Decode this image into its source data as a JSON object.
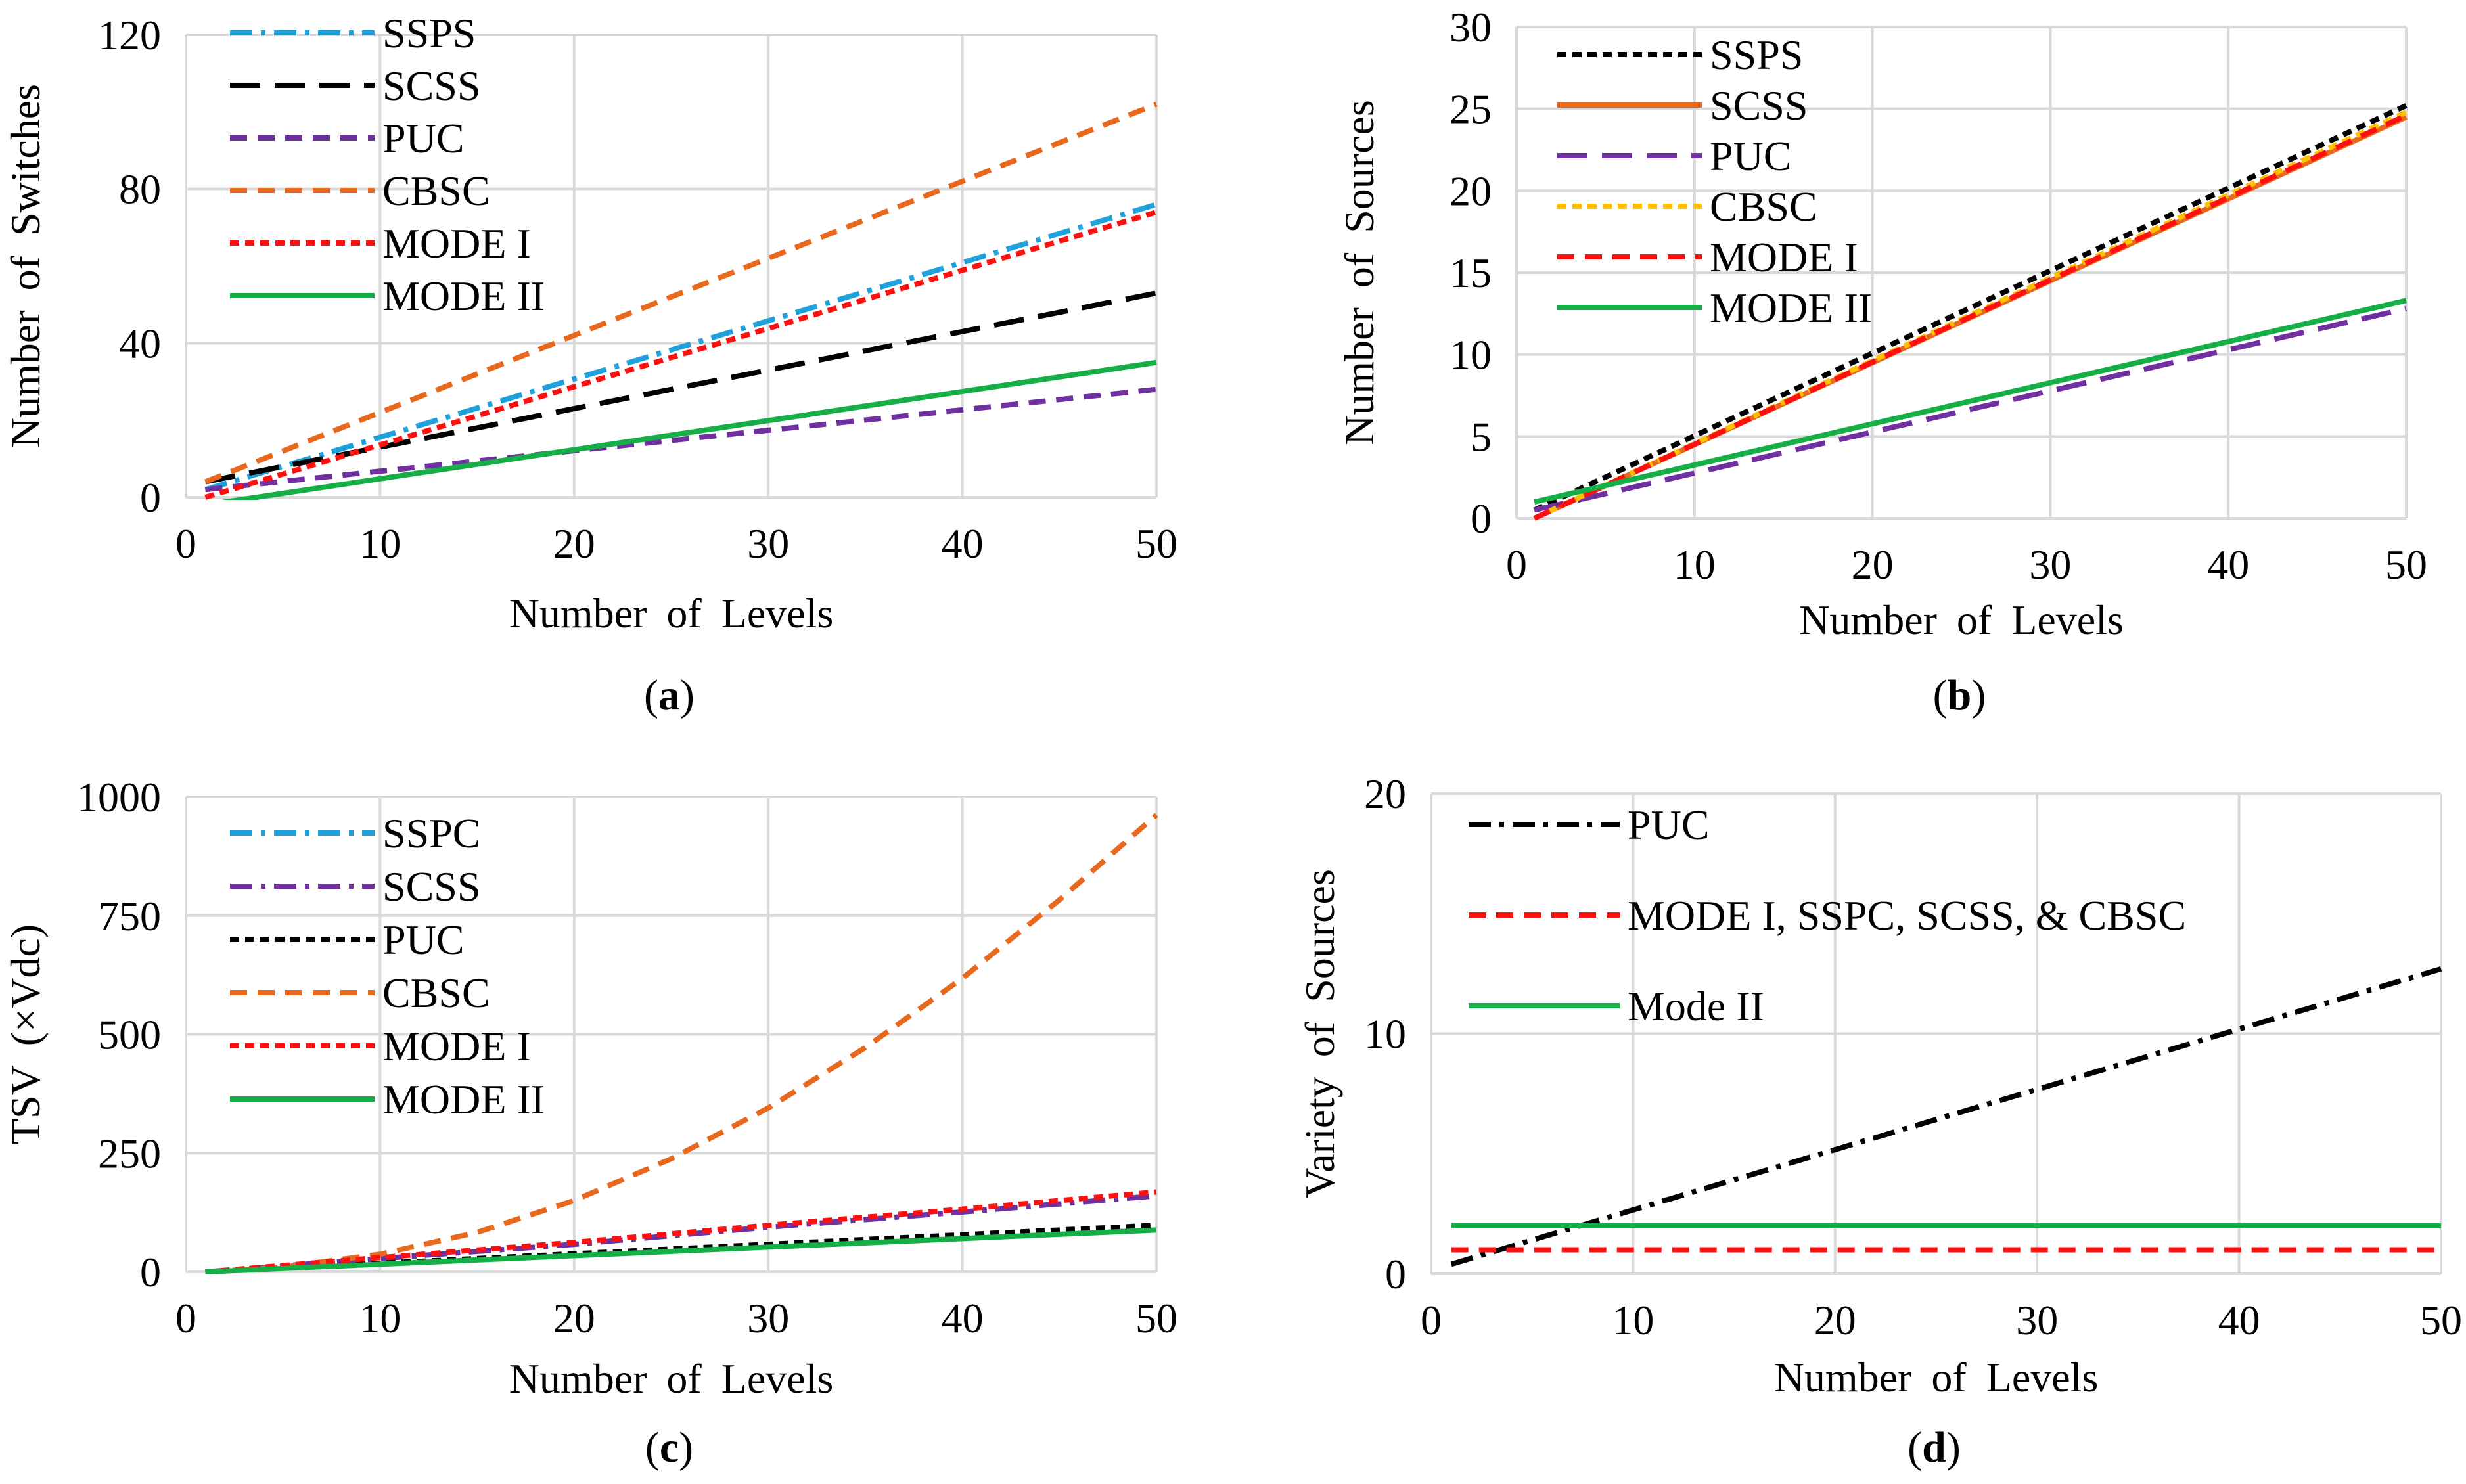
{
  "colors": {
    "blue": "#1FA2DC",
    "black": "#000000",
    "purple": "#7030A0",
    "orange": "#E8681D",
    "red": "#FF1010",
    "green": "#16AE47",
    "yellow": "#FFC000",
    "grid": "#D9D9D9"
  },
  "chart_data": [
    {
      "id": "a",
      "type": "line",
      "caption_letter": "a",
      "xlabel": "Number of Levels",
      "ylabel": "Number of Switches",
      "xlim": [
        0,
        50
      ],
      "ylim": [
        0,
        120
      ],
      "xticks": [
        0,
        10,
        20,
        30,
        40,
        50
      ],
      "yticks": [
        0,
        40,
        80,
        120
      ],
      "xgrid": [
        0,
        10,
        20,
        30,
        40,
        50
      ],
      "ygrid": [
        0,
        40,
        80,
        120
      ],
      "legend_position": "top-left",
      "series": [
        {
          "name": "SSPS",
          "color": "blue",
          "dash": "dashdot",
          "x": [
            1,
            50
          ],
          "y": [
            2,
            76
          ]
        },
        {
          "name": "SCSS",
          "color": "black",
          "dash": "longdash",
          "x": [
            1,
            50
          ],
          "y": [
            4,
            53
          ]
        },
        {
          "name": "PUC",
          "color": "purple",
          "dash": "dash",
          "x": [
            1,
            50
          ],
          "y": [
            2,
            28
          ]
        },
        {
          "name": "CBSC",
          "color": "orange",
          "dash": "dash",
          "x": [
            1,
            50
          ],
          "y": [
            4,
            102
          ]
        },
        {
          "name": "MODE I",
          "color": "red",
          "dash": "dot",
          "x": [
            1,
            50
          ],
          "y": [
            0,
            74
          ]
        },
        {
          "name": "MODE II",
          "color": "green",
          "dash": "solid",
          "x": [
            1,
            50
          ],
          "y": [
            -2,
            35
          ]
        }
      ]
    },
    {
      "id": "b",
      "type": "line",
      "caption_letter": "b",
      "xlabel": "Number of Levels",
      "ylabel": "Number of Sources",
      "xlim": [
        0,
        50
      ],
      "ylim": [
        0,
        30
      ],
      "xticks": [
        0,
        10,
        20,
        30,
        40,
        50
      ],
      "yticks": [
        0,
        5,
        10,
        15,
        20,
        25,
        30
      ],
      "xgrid": [
        0,
        10,
        20,
        30,
        40,
        50
      ],
      "ygrid": [
        0,
        5,
        10,
        15,
        20,
        25,
        30
      ],
      "legend_position": "top-left",
      "series": [
        {
          "name": "SSPS",
          "color": "black",
          "dash": "dot",
          "x": [
            1,
            50
          ],
          "y": [
            0.5,
            25.2
          ]
        },
        {
          "name": "SCSS",
          "color": "orange",
          "dash": "solid",
          "x": [
            1,
            50
          ],
          "y": [
            0,
            24.5
          ]
        },
        {
          "name": "PUC",
          "color": "purple",
          "dash": "longdash",
          "x": [
            1,
            50
          ],
          "y": [
            0.5,
            12.8
          ]
        },
        {
          "name": "CBSC",
          "color": "yellow",
          "dash": "dot",
          "x": [
            1,
            50
          ],
          "y": [
            0,
            24.8
          ]
        },
        {
          "name": "MODE I",
          "color": "red",
          "dash": "dash",
          "x": [
            1,
            50
          ],
          "y": [
            0,
            24.6
          ]
        },
        {
          "name": "MODE II",
          "color": "green",
          "dash": "solid",
          "x": [
            1,
            50
          ],
          "y": [
            1,
            13.3
          ]
        }
      ]
    },
    {
      "id": "c",
      "type": "line",
      "caption_letter": "c",
      "xlabel": "Number of Levels",
      "ylabel": "TSV (×Vdc)",
      "xlim": [
        0,
        50
      ],
      "ylim": [
        0,
        1000
      ],
      "xticks": [
        0,
        10,
        20,
        30,
        40,
        50
      ],
      "yticks": [
        0,
        250,
        500,
        750,
        1000
      ],
      "xgrid": [
        0,
        10,
        20,
        30,
        40,
        50
      ],
      "ygrid": [
        0,
        250,
        500,
        750,
        1000
      ],
      "legend_position": "top-left",
      "series": [
        {
          "name": "SSPC",
          "color": "blue",
          "dash": "dashdot",
          "x": [
            1,
            10,
            20,
            30,
            40,
            50
          ],
          "y": [
            0,
            28,
            58,
            94,
            126,
            160
          ]
        },
        {
          "name": "SCSS",
          "color": "purple",
          "dash": "dashdot",
          "x": [
            1,
            10,
            20,
            30,
            40,
            50
          ],
          "y": [
            0,
            28,
            58,
            94,
            126,
            160
          ]
        },
        {
          "name": "PUC",
          "color": "black",
          "dash": "dot",
          "x": [
            1,
            10,
            20,
            30,
            40,
            50
          ],
          "y": [
            0,
            18,
            38,
            58,
            78,
            98
          ]
        },
        {
          "name": "CBSC",
          "color": "orange",
          "dash": "dash",
          "x": [
            1,
            5,
            10,
            15,
            20,
            25,
            30,
            35,
            40,
            45,
            50
          ],
          "y": [
            0,
            10,
            37,
            83,
            150,
            238,
            345,
            472,
            618,
            783,
            962
          ]
        },
        {
          "name": "MODE I",
          "color": "red",
          "dash": "dot",
          "x": [
            1,
            10,
            20,
            30,
            40,
            50
          ],
          "y": [
            0,
            30,
            62,
            98,
            132,
            168
          ]
        },
        {
          "name": "MODE II",
          "color": "green",
          "dash": "solid",
          "x": [
            1,
            10,
            20,
            30,
            40,
            50
          ],
          "y": [
            0,
            16,
            34,
            52,
            70,
            88
          ]
        }
      ]
    },
    {
      "id": "d",
      "type": "line",
      "caption_letter": "d",
      "xlabel": "Number of Levels",
      "ylabel": "Variety of Sources",
      "xlim": [
        0,
        50
      ],
      "ylim": [
        0,
        20
      ],
      "xticks": [
        0,
        10,
        20,
        30,
        40,
        50
      ],
      "yticks": [
        0,
        10,
        20
      ],
      "xgrid": [
        0,
        10,
        20,
        30,
        40,
        50
      ],
      "ygrid": [
        0,
        10,
        20
      ],
      "legend_position": "top-left",
      "series": [
        {
          "name": "PUC",
          "color": "black",
          "dash": "dashdot",
          "x": [
            1,
            50
          ],
          "y": [
            0.4,
            12.7
          ]
        },
        {
          "name": "MODE I, SSPC, SCSS, & CBSC",
          "color": "red",
          "dash": "dash",
          "x": [
            1,
            50
          ],
          "y": [
            1,
            1
          ]
        },
        {
          "name": "Mode II",
          "color": "green",
          "dash": "solid",
          "x": [
            1,
            50
          ],
          "y": [
            2,
            2
          ]
        }
      ]
    }
  ]
}
